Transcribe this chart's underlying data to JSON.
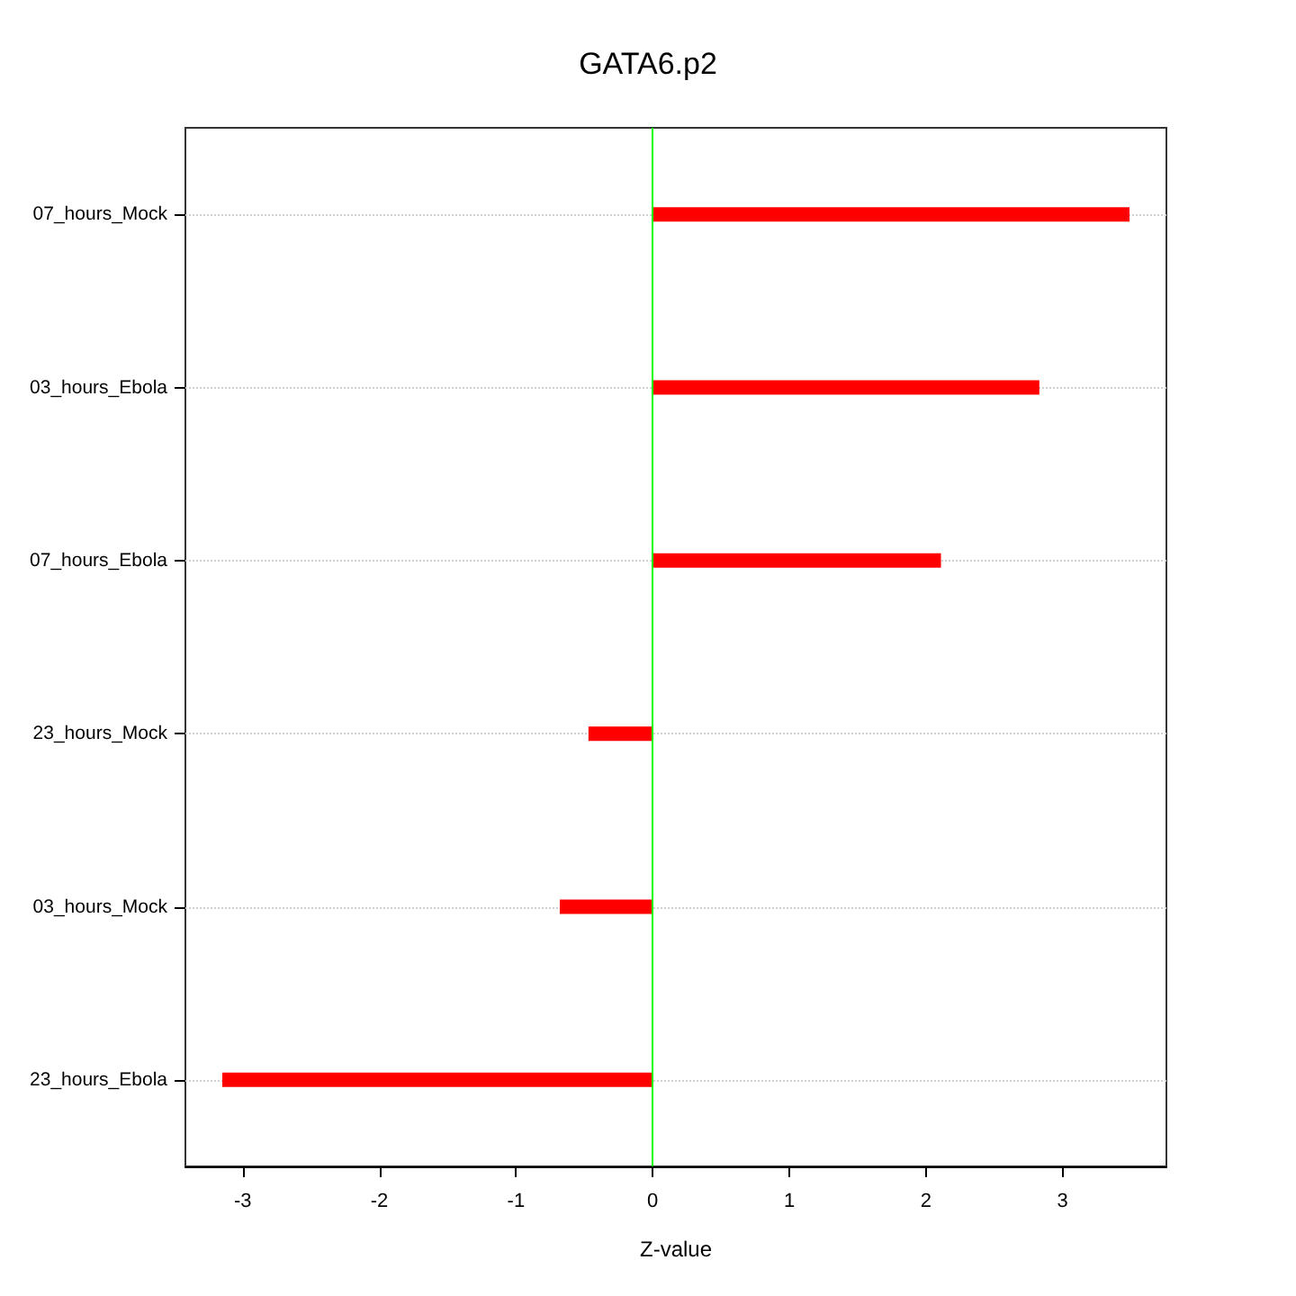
{
  "chart_data": {
    "type": "bar",
    "orientation": "horizontal",
    "title": "GATA6.p2",
    "xlabel": "Z-value",
    "categories": [
      "07_hours_Mock",
      "03_hours_Ebola",
      "07_hours_Ebola",
      "23_hours_Mock",
      "03_hours_Mock",
      "23_hours_Ebola"
    ],
    "values": [
      3.49,
      2.83,
      2.11,
      -0.47,
      -0.68,
      -3.15
    ],
    "color": "#ff0000",
    "xlim": [
      -3.42,
      3.76
    ],
    "xticks": [
      -3,
      -2,
      -1,
      0,
      1,
      2,
      3
    ],
    "grid": "y",
    "ref_lines": [
      {
        "axis": "x",
        "value": 0,
        "color": "#00ff00"
      }
    ]
  }
}
